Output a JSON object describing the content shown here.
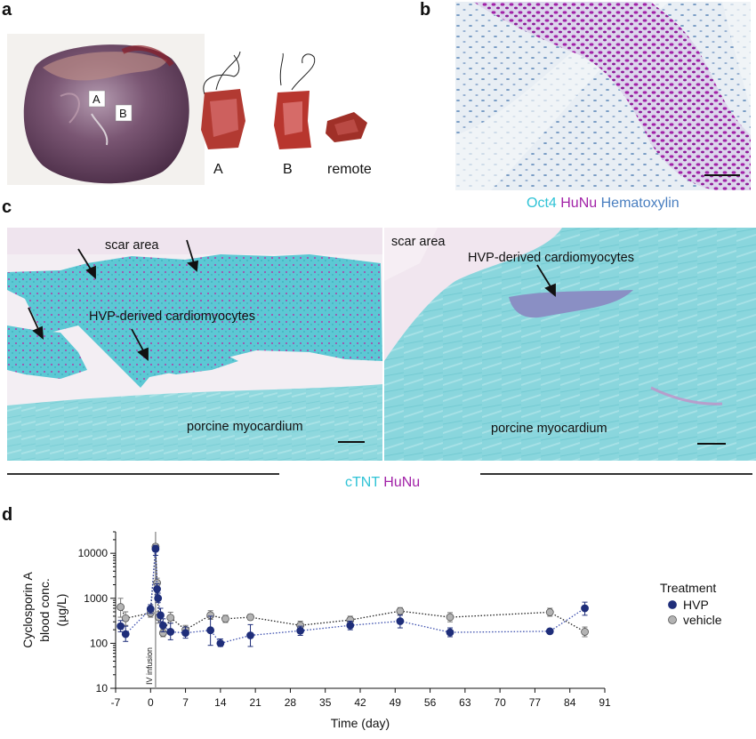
{
  "panels": {
    "a": {
      "label": "a",
      "heart_markers": [
        "A",
        "B"
      ],
      "sample_labels": [
        "A",
        "B",
        "remote"
      ]
    },
    "b": {
      "label": "b",
      "stain": {
        "oct4": "Oct4",
        "hunu": "HuNu",
        "hematoxylin": "Hematoxylin"
      }
    },
    "c": {
      "label": "c",
      "left": {
        "scar_area": "scar area",
        "cardiomyocytes": "HVP-derived cardiomyocytes",
        "myocardium": "porcine myocardium"
      },
      "right": {
        "scar_area": "scar area",
        "cardiomyocytes": "HVP-derived cardiomyocytes",
        "myocardium": "porcine myocardium"
      },
      "stain": {
        "ctnt": "cTNT",
        "hunu": "HuNu"
      }
    },
    "d": {
      "label": "d"
    }
  },
  "colors": {
    "cyan_stain": "#2fc3d6",
    "purple_stain": "#a223a8",
    "blue_stain": "#4a7fc0",
    "hvp": "#1f2e7a",
    "vehicle": "#aaaaaa"
  },
  "chart_data": {
    "type": "line",
    "xlabel": "Time (day)",
    "ylabel": "Cyclosporin A blood conc. (µg/L)",
    "ylabel_lines": [
      "Cyclosporin A",
      "blood conc.",
      "(µg/L)"
    ],
    "yscale": "log",
    "ylim": [
      10,
      30000
    ],
    "xlim": [
      -7,
      91
    ],
    "xticks": [
      -7,
      0,
      7,
      14,
      21,
      28,
      35,
      42,
      49,
      56,
      63,
      70,
      77,
      84,
      91
    ],
    "yticks": [
      10,
      100,
      1000,
      10000
    ],
    "annotation": "IV infusion",
    "annotation_x": 1,
    "legend": {
      "title": "Treatment",
      "position": "right"
    },
    "series": [
      {
        "name": "HVP",
        "color": "#1f2e7a",
        "points": [
          {
            "x": -6,
            "y": 240,
            "lo": 180,
            "hi": 320
          },
          {
            "x": -5,
            "y": 160,
            "lo": 110,
            "hi": 240
          },
          {
            "x": 0,
            "y": 580,
            "lo": 460,
            "hi": 720
          },
          {
            "x": 1,
            "y": 12500,
            "lo": 9000,
            "hi": 15000
          },
          {
            "x": 1.3,
            "y": 1600,
            "lo": 1200,
            "hi": 2100
          },
          {
            "x": 1.5,
            "y": 1000,
            "lo": 800,
            "hi": 1300
          },
          {
            "x": 2,
            "y": 420,
            "lo": 300,
            "hi": 600
          },
          {
            "x": 2.5,
            "y": 250,
            "lo": 180,
            "hi": 350
          },
          {
            "x": 4,
            "y": 180,
            "lo": 120,
            "hi": 280
          },
          {
            "x": 7,
            "y": 170,
            "lo": 130,
            "hi": 230
          },
          {
            "x": 12,
            "y": 195,
            "lo": 90,
            "hi": 400
          },
          {
            "x": 14,
            "y": 100,
            "lo": 85,
            "hi": 125
          },
          {
            "x": 20,
            "y": 150,
            "lo": 85,
            "hi": 260
          },
          {
            "x": 30,
            "y": 190,
            "lo": 150,
            "hi": 240
          },
          {
            "x": 40,
            "y": 250,
            "lo": 200,
            "hi": 310
          },
          {
            "x": 50,
            "y": 310,
            "lo": 220,
            "hi": 420
          },
          {
            "x": 60,
            "y": 175,
            "lo": 140,
            "hi": 220
          },
          {
            "x": 80,
            "y": 185,
            "lo": 165,
            "hi": 205
          },
          {
            "x": 87,
            "y": 600,
            "lo": 420,
            "hi": 820
          }
        ]
      },
      {
        "name": "vehicle",
        "color": "#aaaaaa",
        "points": [
          {
            "x": -6,
            "y": 640,
            "lo": 380,
            "hi": 1000
          },
          {
            "x": -5,
            "y": 360,
            "lo": 250,
            "hi": 500
          },
          {
            "x": 0,
            "y": 470,
            "lo": 380,
            "hi": 580
          },
          {
            "x": 1,
            "y": 14000,
            "lo": 11000,
            "hi": 16000
          },
          {
            "x": 1.3,
            "y": 2200,
            "lo": 1600,
            "hi": 2800
          },
          {
            "x": 1.6,
            "y": 380,
            "lo": 280,
            "hi": 500
          },
          {
            "x": 2.5,
            "y": 170,
            "lo": 140,
            "hi": 210
          },
          {
            "x": 4,
            "y": 370,
            "lo": 280,
            "hi": 490
          },
          {
            "x": 7,
            "y": 200,
            "lo": 160,
            "hi": 250
          },
          {
            "x": 12,
            "y": 420,
            "lo": 340,
            "hi": 530
          },
          {
            "x": 15,
            "y": 350,
            "lo": 290,
            "hi": 420
          },
          {
            "x": 20,
            "y": 380,
            "lo": 330,
            "hi": 440
          },
          {
            "x": 30,
            "y": 250,
            "lo": 200,
            "hi": 310
          },
          {
            "x": 40,
            "y": 330,
            "lo": 270,
            "hi": 400
          },
          {
            "x": 50,
            "y": 520,
            "lo": 430,
            "hi": 620
          },
          {
            "x": 60,
            "y": 380,
            "lo": 300,
            "hi": 480
          },
          {
            "x": 80,
            "y": 490,
            "lo": 400,
            "hi": 600
          },
          {
            "x": 87,
            "y": 180,
            "lo": 140,
            "hi": 230
          }
        ]
      }
    ]
  }
}
